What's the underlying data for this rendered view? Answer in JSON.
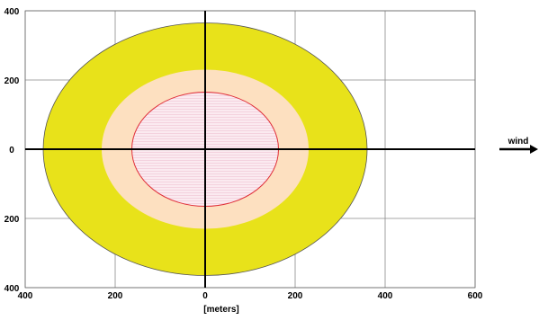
{
  "chart_data": {
    "type": "area",
    "title": "",
    "xlabel": "[meters]",
    "ylabel": "",
    "xlim": [
      -400,
      600
    ],
    "ylim": [
      -400,
      400
    ],
    "x_ticks": [
      -400,
      -200,
      0,
      200,
      400,
      600
    ],
    "x_tick_labels": [
      "400",
      "200",
      "0",
      "200",
      "400",
      "600"
    ],
    "y_ticks": [
      400,
      200,
      0,
      -200,
      -400
    ],
    "y_tick_labels": [
      "400",
      "200",
      "0",
      "200",
      "400"
    ],
    "grid": true,
    "zones": [
      {
        "shape": "ellipse",
        "x_range": [
          -360,
          360
        ],
        "y_range": [
          -365,
          365
        ],
        "color": "#e8e21a"
      },
      {
        "shape": "ellipse",
        "x_range": [
          -230,
          230
        ],
        "y_range": [
          -230,
          230
        ],
        "color": "#fde0c0"
      },
      {
        "shape": "ellipse",
        "x_range": [
          -163,
          163
        ],
        "y_range": [
          -165,
          165
        ],
        "color": "#fbeaf0",
        "edge_color": "#e0303a"
      }
    ],
    "annotations": [
      {
        "text": "wind",
        "arrow": "right",
        "color": "#000000"
      }
    ]
  }
}
